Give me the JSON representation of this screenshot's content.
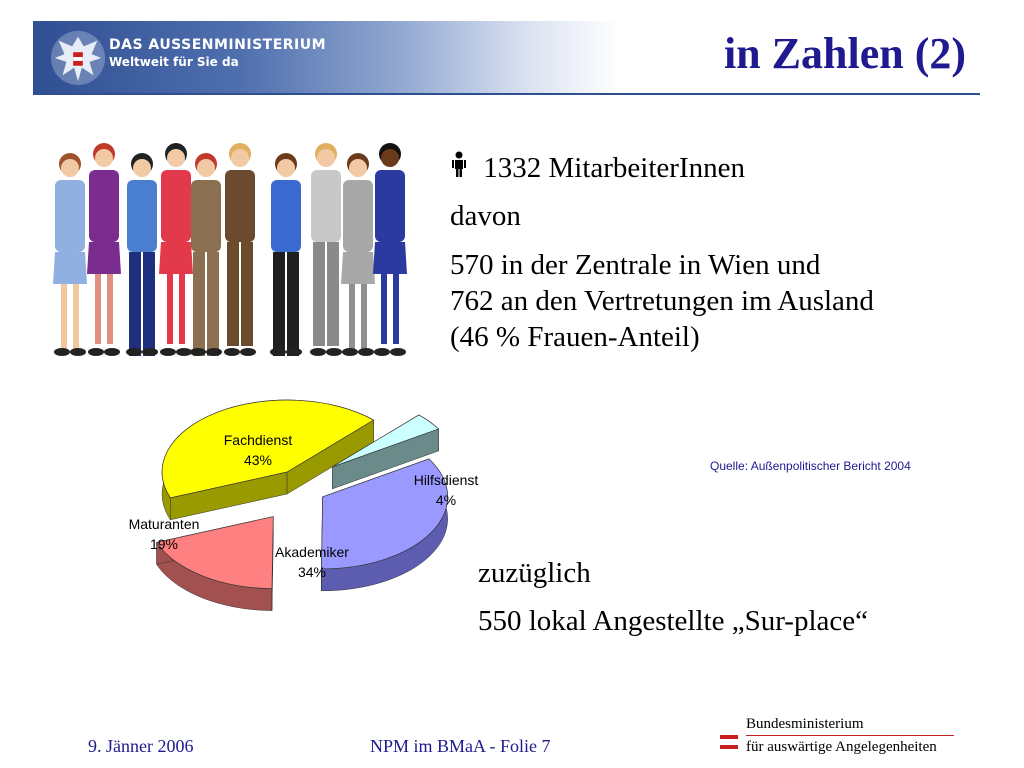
{
  "header": {
    "brand_line1": "DAS AUSSENMINISTERIUM",
    "brand_line2": "Weltweit für Sie da",
    "title": "in Zahlen (2)"
  },
  "main": {
    "person_icon": "person-icon",
    "staff_total": "1332 MitarbeiterInnen",
    "davon": "davon",
    "line_zentrale": "570 in der Zentrale in Wien und",
    "line_ausland": "762 an den Vertretungen im Ausland",
    "line_frauen": "(46 % Frauen-Anteil)",
    "source": "Quelle: Außenpolitischer Bericht 2004",
    "zuzueglich": "zuzüglich",
    "sur_place": "550 lokal Angestellte „Sur-place“"
  },
  "chart_data": {
    "type": "pie",
    "categories": [
      "Fachdienst",
      "Hilfsdienst",
      "Akademiker",
      "Maturanten"
    ],
    "values": [
      43,
      4,
      34,
      19
    ],
    "labels": [
      "43%",
      "4%",
      "34%",
      "19%"
    ],
    "colors": [
      "#ffff00",
      "#ccffff",
      "#9999ff",
      "#ff8080"
    ],
    "side_colors": [
      "#999900",
      "#6b8a8a",
      "#5c5cb0",
      "#a35050"
    ]
  },
  "footer": {
    "date": "9. Jänner 2006",
    "slide": "NPM im BMaA - Folie 7",
    "ministry_line1": "Bundesministerium",
    "ministry_line2": "für auswärtige Angelegenheiten"
  }
}
